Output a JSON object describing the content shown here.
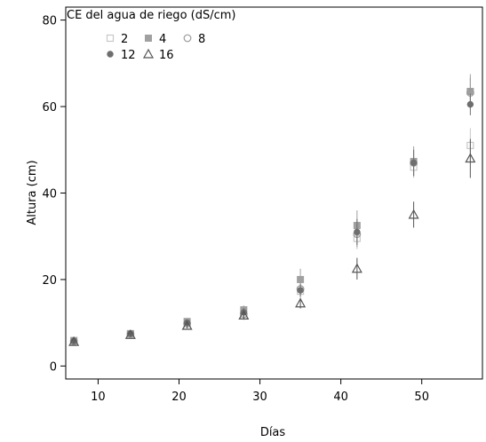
{
  "chart_data": {
    "type": "scatter",
    "xlabel": "Días",
    "ylabel": "Altura (cm)",
    "xlim": [
      6,
      57.5
    ],
    "ylim": [
      -3,
      83
    ],
    "xticks": [
      10,
      20,
      30,
      40,
      50
    ],
    "yticks": [
      0,
      20,
      40,
      60,
      80
    ],
    "grid": false,
    "legend": {
      "title": "CE del agua de riego (dS/cm)",
      "placement": "top-left"
    },
    "x": [
      7,
      14,
      21,
      28,
      35,
      42,
      49,
      56
    ],
    "series": [
      {
        "name": "2",
        "marker": "open-square",
        "color": "#c8c8c8",
        "values": [
          5.8,
          7.3,
          9.3,
          11.6,
          17.3,
          29.5,
          46.0,
          51.0
        ],
        "err": [
          0.6,
          0.6,
          0.8,
          1.0,
          2.0,
          2.5,
          2.5,
          4.0
        ]
      },
      {
        "name": "4",
        "marker": "filled-square",
        "color": "#a0a0a0",
        "values": [
          5.9,
          7.5,
          10.3,
          13.0,
          20.0,
          32.5,
          47.3,
          63.5
        ],
        "err": [
          0.5,
          0.6,
          0.8,
          1.0,
          2.5,
          3.5,
          3.5,
          4.0
        ]
      },
      {
        "name": "8",
        "marker": "open-circle",
        "color": "#9a9a9a",
        "values": [
          5.7,
          7.4,
          9.8,
          12.0,
          17.8,
          30.5,
          47.0,
          63.2
        ],
        "err": [
          0.5,
          0.6,
          0.8,
          1.0,
          1.5,
          3.0,
          3.0,
          3.5
        ]
      },
      {
        "name": "12",
        "marker": "filled-circle",
        "color": "#6e6e6e",
        "values": [
          5.8,
          7.5,
          10.0,
          12.4,
          17.5,
          31.0,
          47.0,
          60.5
        ],
        "err": [
          0.5,
          0.6,
          0.8,
          1.0,
          1.5,
          3.0,
          3.0,
          2.5
        ]
      },
      {
        "name": "16",
        "marker": "open-triangle",
        "color": "#555555",
        "values": [
          5.6,
          7.2,
          9.3,
          11.7,
          14.5,
          22.5,
          35.0,
          48.0
        ],
        "err": [
          0.5,
          0.5,
          0.6,
          0.8,
          1.2,
          2.5,
          3.0,
          4.5
        ]
      }
    ]
  }
}
